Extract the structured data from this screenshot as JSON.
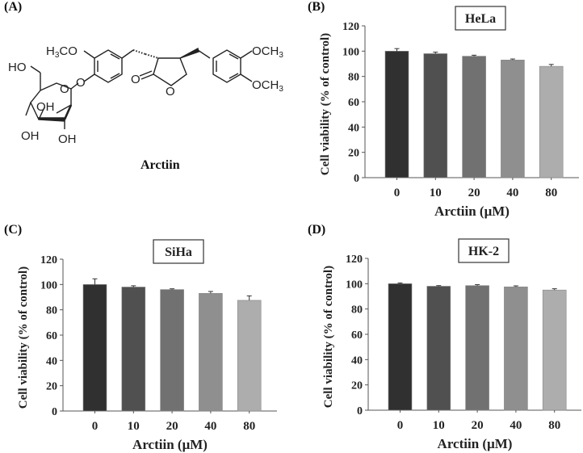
{
  "figure": {
    "panel_labels": [
      "(A)",
      "(B)",
      "(C)",
      "(D)"
    ],
    "compound": {
      "name": "Arctiin",
      "structure_labels": [
        "H3CO",
        "OCH3",
        "OCH3",
        "HO",
        "O",
        "OH",
        "OH",
        "OH",
        "O",
        "O",
        "O"
      ]
    }
  },
  "chart_data": [
    {
      "panel": "(B)",
      "type": "bar",
      "title": "HeLa",
      "categories": [
        "0",
        "10",
        "20",
        "40",
        "80"
      ],
      "values": [
        100,
        98,
        96,
        93,
        88
      ],
      "errors": [
        2.0,
        1.2,
        0.8,
        0.8,
        1.5
      ],
      "xlabel": "Arctiin (μM)",
      "ylabel": "Cell viability (% of control)",
      "ylim": [
        0,
        120
      ],
      "yticks": [
        0,
        20,
        40,
        60,
        80,
        100,
        120
      ],
      "bar_colors": [
        "#303030",
        "#505050",
        "#717171",
        "#8f8f8f",
        "#adadad"
      ],
      "grid": false,
      "legend": null
    },
    {
      "panel": "(C)",
      "type": "bar",
      "title": "SiHa",
      "categories": [
        "0",
        "10",
        "20",
        "40",
        "80"
      ],
      "values": [
        100,
        98,
        96,
        93,
        87.5
      ],
      "errors": [
        4.5,
        1.0,
        0.6,
        1.5,
        3.5
      ],
      "xlabel": "Arctiin (μM)",
      "ylabel": "Cell viability (% of control)",
      "ylim": [
        0,
        120
      ],
      "yticks": [
        0,
        20,
        40,
        60,
        80,
        100,
        120
      ],
      "bar_colors": [
        "#303030",
        "#505050",
        "#717171",
        "#8f8f8f",
        "#adadad"
      ],
      "grid": false,
      "legend": null
    },
    {
      "panel": "(D)",
      "type": "bar",
      "title": "HK-2",
      "categories": [
        "0",
        "10",
        "20",
        "40",
        "80"
      ],
      "values": [
        100,
        98,
        98.5,
        97.5,
        95
      ],
      "errors": [
        0.6,
        0.5,
        0.8,
        0.8,
        1.0
      ],
      "xlabel": "Arctiin (μM)",
      "ylabel": "Cell viability (% of control)",
      "ylim": [
        0,
        120
      ],
      "yticks": [
        0,
        20,
        40,
        60,
        80,
        100,
        120
      ],
      "bar_colors": [
        "#303030",
        "#505050",
        "#717171",
        "#8f8f8f",
        "#adadad"
      ],
      "grid": false,
      "legend": null
    }
  ]
}
